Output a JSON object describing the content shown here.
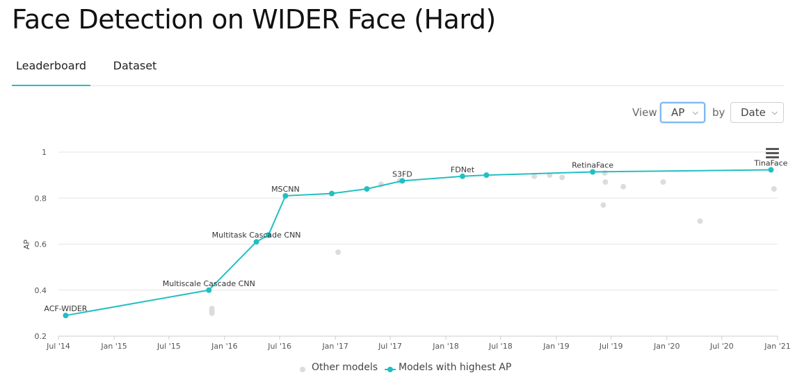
{
  "page": {
    "title": "Face Detection on WIDER Face (Hard)"
  },
  "tabs": [
    {
      "label": "Leaderboard",
      "active": true
    },
    {
      "label": "Dataset",
      "active": false
    }
  ],
  "controls": {
    "view_label": "View",
    "view_value": "AP",
    "by_label": "by",
    "by_value": "Date"
  },
  "colors": {
    "accent": "#21bfc2",
    "other": "#dcdcdc",
    "grid": "#e6e6e6"
  },
  "icons": {
    "menu": "hamburger-menu-icon",
    "dropdown": "chevron-down-icon"
  },
  "chart_data": {
    "type": "scatter",
    "title": "",
    "xlabel": "",
    "ylabel": "AP",
    "ylim": [
      0.2,
      1.0
    ],
    "yticks": [
      "0.2",
      "0.4",
      "0.6",
      "0.8",
      "1"
    ],
    "xlim": [
      "2014-07-01",
      "2021-01-01"
    ],
    "xticks": [
      "Jul '14",
      "Jan '15",
      "Jul '15",
      "Jan '16",
      "Jul '16",
      "Jan '17",
      "Jul '17",
      "Jan '18",
      "Jul '18",
      "Jan '19",
      "Jul '19",
      "Jan '20",
      "Jul '20",
      "Jan '21"
    ],
    "grid": true,
    "legend_position": "bottom",
    "series": [
      {
        "name": "Other models",
        "points": [
          {
            "date": "2015-11-20",
            "y": 0.31
          },
          {
            "date": "2015-11-20",
            "y": 0.3
          },
          {
            "date": "2015-11-20",
            "y": 0.32
          },
          {
            "date": "2017-01-10",
            "y": 0.565
          },
          {
            "date": "2017-06-01",
            "y": 0.86
          },
          {
            "date": "2017-08-01",
            "y": 0.875
          },
          {
            "date": "2018-10-20",
            "y": 0.895
          },
          {
            "date": "2018-12-10",
            "y": 0.9
          },
          {
            "date": "2019-01-20",
            "y": 0.89
          },
          {
            "date": "2019-06-05",
            "y": 0.77
          },
          {
            "date": "2019-06-10",
            "y": 0.91
          },
          {
            "date": "2019-06-12",
            "y": 0.87
          },
          {
            "date": "2019-08-10",
            "y": 0.85
          },
          {
            "date": "2019-12-20",
            "y": 0.87
          },
          {
            "date": "2020-04-20",
            "y": 0.7
          },
          {
            "date": "2020-12-20",
            "y": 0.84
          }
        ]
      },
      {
        "name": "Models with highest AP",
        "points": [
          {
            "date": "2014-07-25",
            "y": 0.29,
            "label": "ACF-WIDER"
          },
          {
            "date": "2015-11-10",
            "y": 0.4,
            "label": "Multiscale Cascade CNN"
          },
          {
            "date": "2016-04-15",
            "y": 0.61,
            "label": "Multitask Cascade CNN"
          },
          {
            "date": "2016-05-25",
            "y": 0.64
          },
          {
            "date": "2016-07-20",
            "y": 0.81,
            "label": "MSCNN"
          },
          {
            "date": "2016-12-20",
            "y": 0.82
          },
          {
            "date": "2017-04-15",
            "y": 0.84
          },
          {
            "date": "2017-08-10",
            "y": 0.875,
            "label": "S3FD"
          },
          {
            "date": "2018-02-25",
            "y": 0.895,
            "label": "FDNet"
          },
          {
            "date": "2018-05-15",
            "y": 0.9
          },
          {
            "date": "2019-05-01",
            "y": 0.914,
            "label": "RetinaFace"
          },
          {
            "date": "2020-12-10",
            "y": 0.923,
            "label": "TinaFace"
          }
        ]
      }
    ]
  }
}
